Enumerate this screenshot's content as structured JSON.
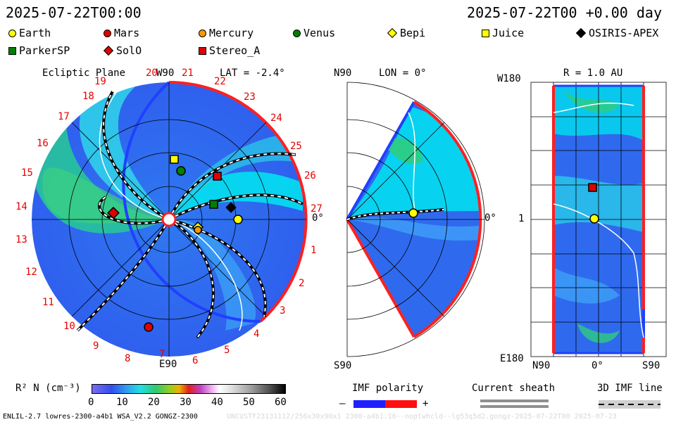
{
  "header": {
    "datetime": "2025-07-22T00:00",
    "model_time": "2025-07-22T00 +0.00 day"
  },
  "legend_items": [
    {
      "label": "Earth",
      "shape": "circle",
      "color": "#ffff00"
    },
    {
      "label": "Mars",
      "shape": "circle",
      "color": "#e00000"
    },
    {
      "label": "Mercury",
      "shape": "circle",
      "color": "#ff9900"
    },
    {
      "label": "Venus",
      "shape": "circle",
      "color": "#008000"
    },
    {
      "label": "Bepi",
      "shape": "diamond",
      "color": "#ffff00"
    },
    {
      "label": "Juice",
      "shape": "square",
      "color": "#ffff00"
    },
    {
      "label": "OSIRIS-APEX",
      "shape": "diamond",
      "color": "#000000"
    },
    {
      "label": "ParkerSP",
      "shape": "square",
      "color": "#008000"
    },
    {
      "label": "SolO",
      "shape": "diamond",
      "color": "#e00000"
    },
    {
      "label": "Stereo_A",
      "shape": "square",
      "color": "#e00000"
    }
  ],
  "panel_ecliptic": {
    "title": "Ecliptic Plane",
    "lat_label": "LAT = -2.4°",
    "top_label": "W90",
    "bottom_label": "E90",
    "right_label": "0°",
    "rotation_numbers": [
      "19",
      "20",
      "21",
      "22",
      "23",
      "24",
      "25",
      "26",
      "27",
      "1",
      "2",
      "3",
      "4",
      "5",
      "6",
      "7",
      "8",
      "9",
      "10",
      "11",
      "12",
      "13",
      "14",
      "15",
      "16",
      "17",
      "18"
    ]
  },
  "panel_meridional": {
    "top_label": "N90",
    "lon_label": "LON = 0°",
    "bottom_label": "S90",
    "right_label": "0°"
  },
  "panel_radial": {
    "title": "R = 1.0 AU",
    "top_left_label": "W180",
    "mid_left_label": "1",
    "bottom_left_label": "E180",
    "bottom_labels": [
      "N90",
      "0°",
      "S90"
    ]
  },
  "colorbar": {
    "label": "R² N (cm⁻³)",
    "ticks": [
      "0",
      "10",
      "20",
      "30",
      "40",
      "50",
      "60"
    ]
  },
  "imf_polarity": {
    "title": "IMF polarity",
    "minus": "–",
    "plus": "+"
  },
  "current_sheath": {
    "title": "Current sheath"
  },
  "imf_line": {
    "title": "3D IMF line"
  },
  "footer": {
    "left": "ENLIL-2.7 lowres-2300-a4b1 WSA_V2.2 GONGZ-2300",
    "right": "UNCUSTF23131112/256x30x90x1 2300-a4b1.16--noptwhcld--lg53q5d2.gongz-2025-07-22T00   2025-07-23"
  },
  "colors": {
    "frame_red": "#ff2020",
    "frame_blue": "#2040ff",
    "background_blue": "#2f60ee",
    "cyan": "#00e8f0",
    "green": "#2ab878"
  }
}
